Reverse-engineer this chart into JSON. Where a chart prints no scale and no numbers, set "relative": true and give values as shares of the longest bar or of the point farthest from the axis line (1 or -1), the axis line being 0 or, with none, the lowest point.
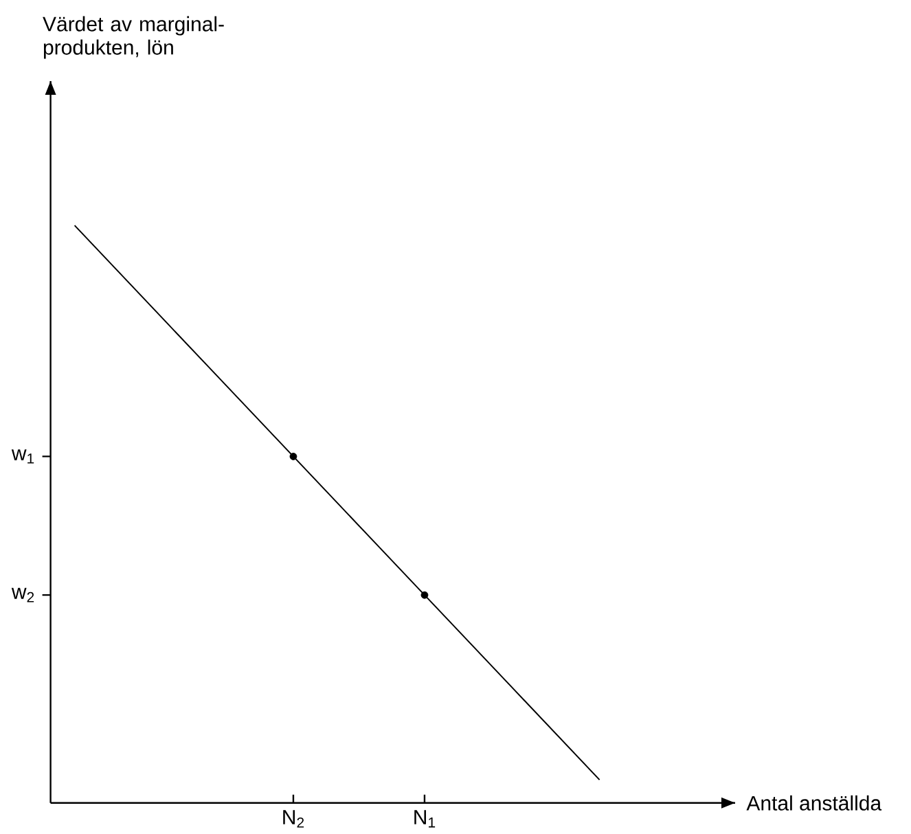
{
  "chart_data": {
    "type": "line",
    "relative": true,
    "categories": [
      null,
      null,
      null,
      null,
      null,
      "N$_{2}$",
      null,
      null,
      "N$_{1}$",
      null,
      null,
      null,
      null
    ],
    "annotations": [
      "w$_{1}$",
      "w$_{2}$",
      "Antal anställda",
      "Värdet av marginal-produkten, lön"
    ],
    "series": [
      {
        "color": "#000000",
        "values": [
          1,
          0.92,
          0.84,
          0.76,
          0.68,
          0.6,
          0.52,
          0.44,
          0.36,
          0.28,
          0.2,
          0.12,
          0.04
        ],
        "marker": "none",
        "line_style": "solid"
      },
      {
        "type": "scatter",
        "color": "#000000",
        "values": [
          null,
          null,
          null,
          null,
          null,
          0.6,
          null,
          null,
          0.36,
          null,
          null,
          null,
          null
        ],
        "marker": "circle"
      }
    ]
  }
}
